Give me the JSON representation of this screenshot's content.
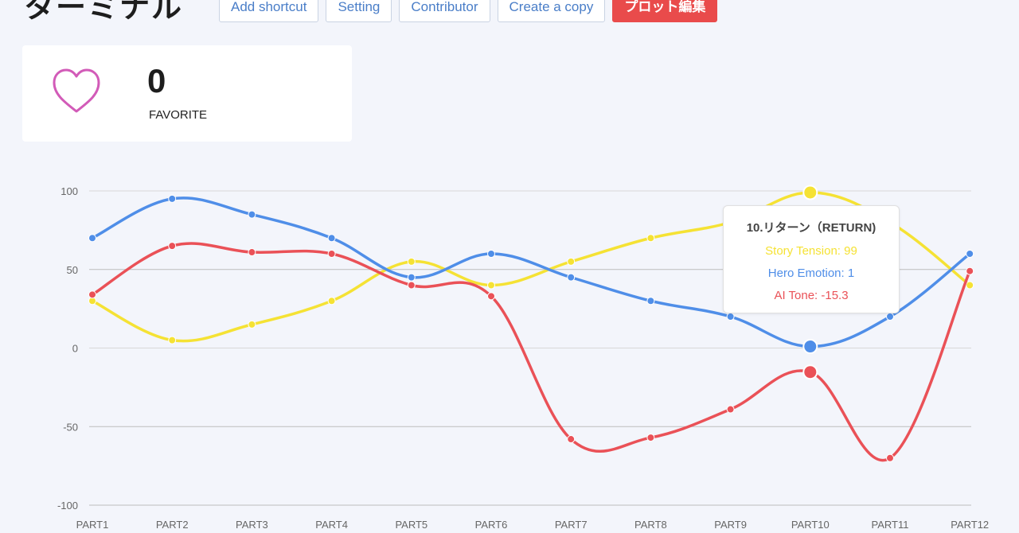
{
  "header": {
    "title": "ターミナル",
    "buttons": [
      "Add shortcut",
      "Setting",
      "Contributor",
      "Create a copy",
      "プロット編集"
    ]
  },
  "favorite": {
    "count": "0",
    "label": "FAVORITE",
    "icon": "heart-icon"
  },
  "tooltip": {
    "title": "10.リターン（RETURN)",
    "lines": [
      "Story Tension: 99",
      "Hero Emotion: 1",
      "AI Tone: -15.3"
    ]
  },
  "colors": {
    "yellow": "#f5e234",
    "blue": "#4f8ee8",
    "red": "#ea5157",
    "accent": "#e94b4b"
  },
  "chart_data": {
    "type": "line",
    "categories": [
      "PART1",
      "PART2",
      "PART3",
      "PART4",
      "PART5",
      "PART6",
      "PART7",
      "PART8",
      "PART9",
      "PART10",
      "PART11",
      "PART12"
    ],
    "ylim": [
      -100,
      100
    ],
    "yticks": [
      100,
      50,
      0,
      -50,
      -100
    ],
    "series": [
      {
        "name": "Story Tension",
        "color": "#f5e234",
        "values": [
          30,
          5,
          15,
          30,
          55,
          40,
          55,
          70,
          80,
          99,
          80,
          40
        ]
      },
      {
        "name": "Hero Emotion",
        "color": "#4f8ee8",
        "values": [
          70,
          95,
          85,
          70,
          45,
          60,
          45,
          30,
          20,
          1,
          20,
          60
        ]
      },
      {
        "name": "AI Tone",
        "color": "#ea5157",
        "values": [
          34,
          65,
          61,
          60,
          40,
          33,
          -58,
          -57,
          -39,
          -15.3,
          -70,
          49
        ]
      }
    ],
    "highlight_index": 9
  }
}
